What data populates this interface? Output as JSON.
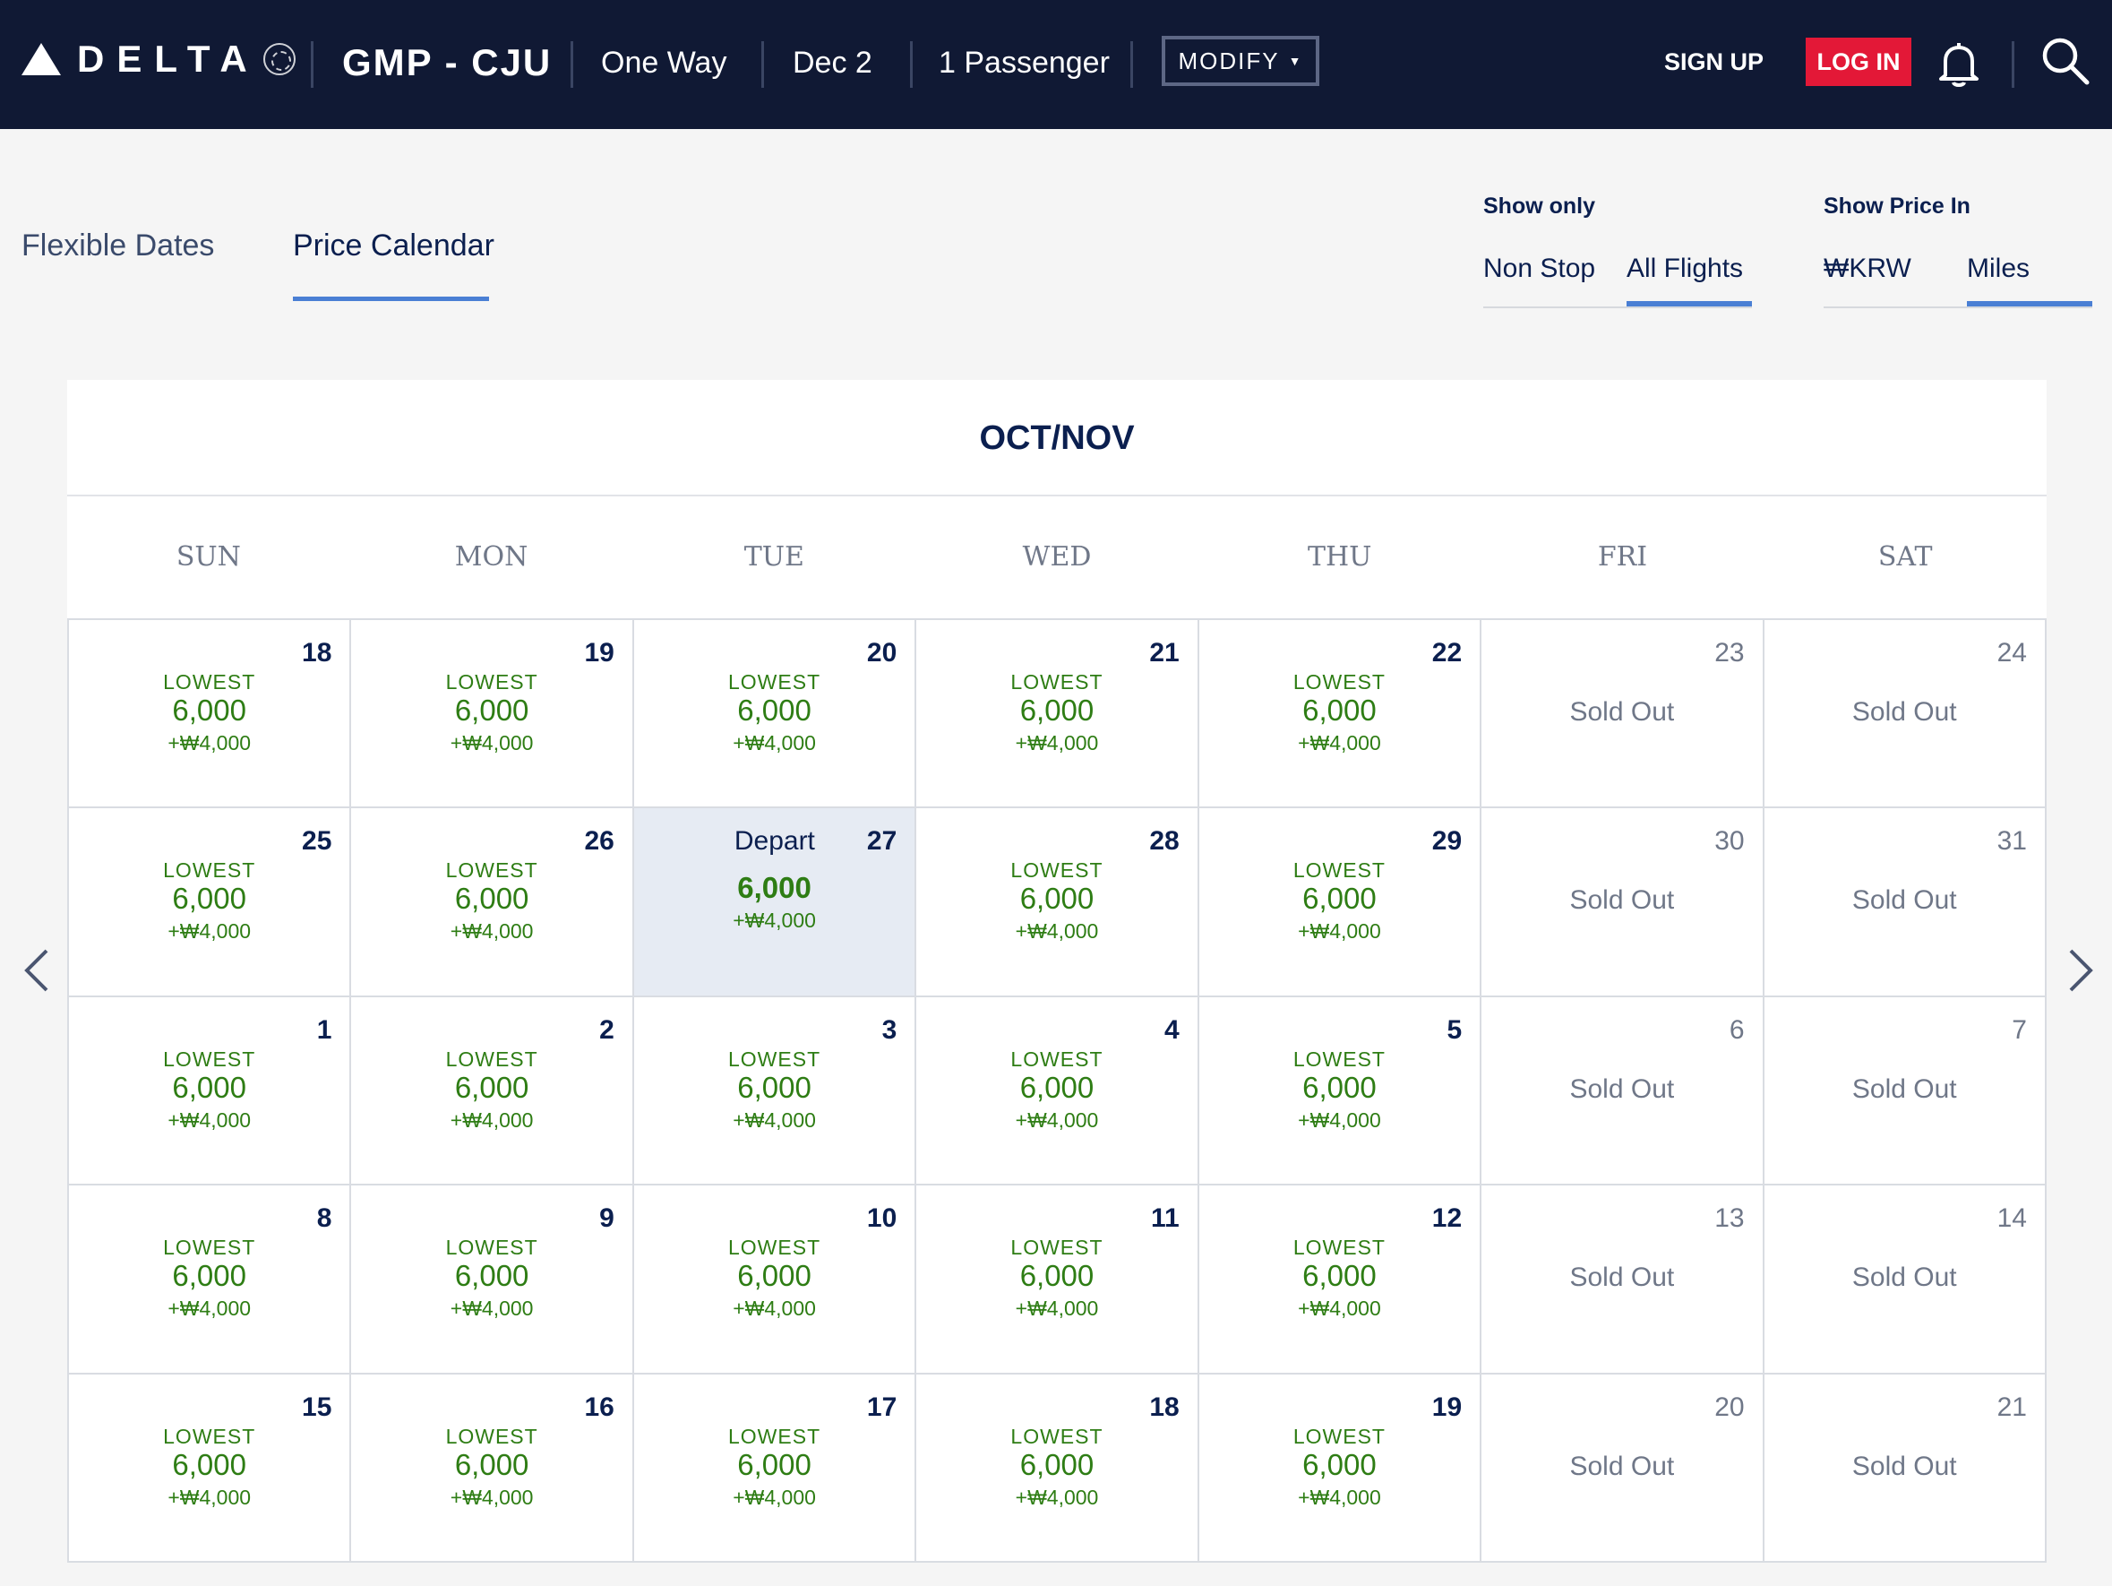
{
  "header": {
    "logo_text": "DELTA",
    "route": "GMP - CJU",
    "trip_type": "One Way",
    "date": "Dec 2",
    "passengers": "1 Passenger",
    "modify_label": "MODIFY",
    "signup_label": "SIGN UP",
    "login_label": "LOG IN",
    "colors": {
      "bar": "#101934",
      "login": "#e31837"
    }
  },
  "tabs": {
    "flexible_dates": "Flexible Dates",
    "price_calendar": "Price Calendar",
    "active": "Price Calendar"
  },
  "filters": {
    "show_only": {
      "title": "Show only",
      "options": [
        "Non Stop",
        "All Flights"
      ],
      "selected": "All Flights"
    },
    "show_price_in": {
      "title": "Show Price In",
      "options": [
        "₩KRW",
        "Miles"
      ],
      "selected": "Miles"
    }
  },
  "calendar": {
    "month_label": "OCT/NOV",
    "weekdays": [
      "SUN",
      "MON",
      "TUE",
      "WED",
      "THU",
      "FRI",
      "SAT"
    ],
    "lowest_label": "LOWEST",
    "sold_out_label": "Sold Out",
    "depart_label": "Depart",
    "price_color": "#2e7d14",
    "selected_day": "27",
    "weeks": [
      [
        {
          "day": "18",
          "status": "available",
          "miles": "6,000",
          "fee": "+₩4,000"
        },
        {
          "day": "19",
          "status": "available",
          "miles": "6,000",
          "fee": "+₩4,000"
        },
        {
          "day": "20",
          "status": "available",
          "miles": "6,000",
          "fee": "+₩4,000"
        },
        {
          "day": "21",
          "status": "available",
          "miles": "6,000",
          "fee": "+₩4,000"
        },
        {
          "day": "22",
          "status": "available",
          "miles": "6,000",
          "fee": "+₩4,000"
        },
        {
          "day": "23",
          "status": "soldout"
        },
        {
          "day": "24",
          "status": "soldout"
        }
      ],
      [
        {
          "day": "25",
          "status": "available",
          "miles": "6,000",
          "fee": "+₩4,000"
        },
        {
          "day": "26",
          "status": "available",
          "miles": "6,000",
          "fee": "+₩4,000"
        },
        {
          "day": "27",
          "status": "selected",
          "miles": "6,000",
          "fee": "+₩4,000"
        },
        {
          "day": "28",
          "status": "available",
          "miles": "6,000",
          "fee": "+₩4,000"
        },
        {
          "day": "29",
          "status": "available",
          "miles": "6,000",
          "fee": "+₩4,000"
        },
        {
          "day": "30",
          "status": "soldout"
        },
        {
          "day": "31",
          "status": "soldout"
        }
      ],
      [
        {
          "day": "1",
          "status": "available",
          "miles": "6,000",
          "fee": "+₩4,000"
        },
        {
          "day": "2",
          "status": "available",
          "miles": "6,000",
          "fee": "+₩4,000"
        },
        {
          "day": "3",
          "status": "available",
          "miles": "6,000",
          "fee": "+₩4,000"
        },
        {
          "day": "4",
          "status": "available",
          "miles": "6,000",
          "fee": "+₩4,000"
        },
        {
          "day": "5",
          "status": "available",
          "miles": "6,000",
          "fee": "+₩4,000"
        },
        {
          "day": "6",
          "status": "soldout"
        },
        {
          "day": "7",
          "status": "soldout"
        }
      ],
      [
        {
          "day": "8",
          "status": "available",
          "miles": "6,000",
          "fee": "+₩4,000"
        },
        {
          "day": "9",
          "status": "available",
          "miles": "6,000",
          "fee": "+₩4,000"
        },
        {
          "day": "10",
          "status": "available",
          "miles": "6,000",
          "fee": "+₩4,000"
        },
        {
          "day": "11",
          "status": "available",
          "miles": "6,000",
          "fee": "+₩4,000"
        },
        {
          "day": "12",
          "status": "available",
          "miles": "6,000",
          "fee": "+₩4,000"
        },
        {
          "day": "13",
          "status": "soldout"
        },
        {
          "day": "14",
          "status": "soldout"
        }
      ],
      [
        {
          "day": "15",
          "status": "available",
          "miles": "6,000",
          "fee": "+₩4,000"
        },
        {
          "day": "16",
          "status": "available",
          "miles": "6,000",
          "fee": "+₩4,000"
        },
        {
          "day": "17",
          "status": "available",
          "miles": "6,000",
          "fee": "+₩4,000"
        },
        {
          "day": "18",
          "status": "available",
          "miles": "6,000",
          "fee": "+₩4,000"
        },
        {
          "day": "19",
          "status": "available",
          "miles": "6,000",
          "fee": "+₩4,000"
        },
        {
          "day": "20",
          "status": "soldout"
        },
        {
          "day": "21",
          "status": "soldout"
        }
      ]
    ]
  },
  "icons": [
    "delta-logo-icon",
    "skyteam-icon",
    "bell-icon",
    "search-icon",
    "chevron-left-icon",
    "chevron-right-icon"
  ]
}
